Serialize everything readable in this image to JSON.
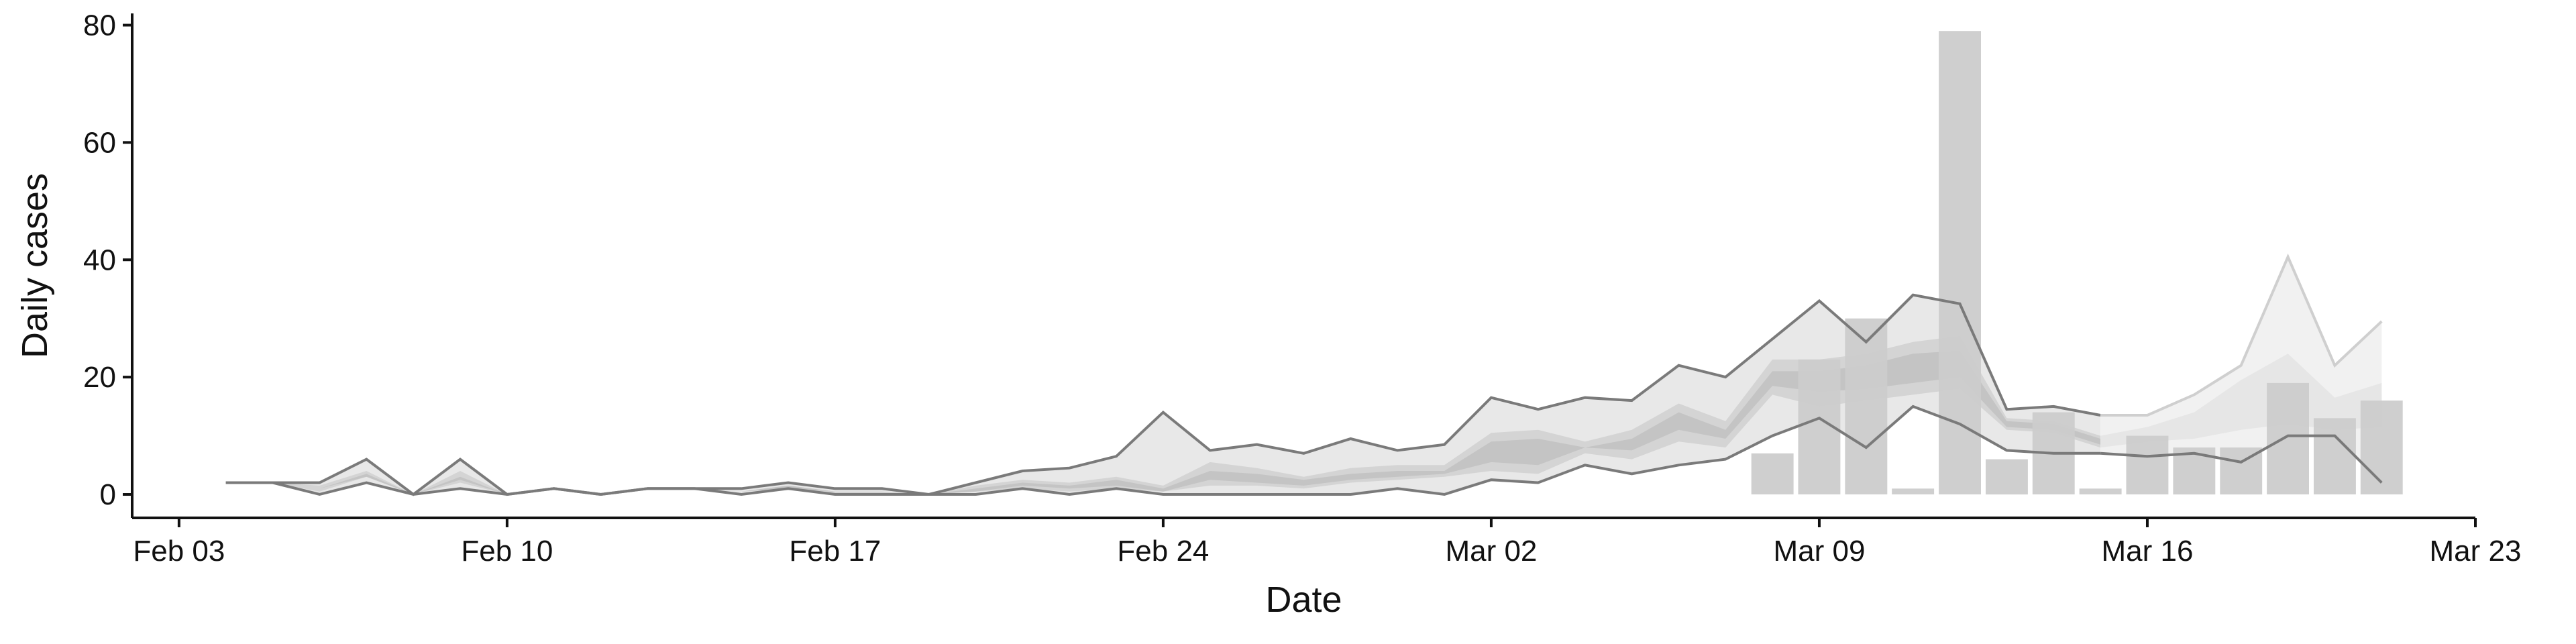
{
  "chart_data": {
    "type": "area",
    "xlabel": "Date",
    "ylabel": "Daily cases",
    "x_ticks": [
      "Feb 03",
      "Feb 10",
      "Feb 17",
      "Feb 24",
      "Mar 02",
      "Mar 09",
      "Mar 16",
      "Mar 23"
    ],
    "x_tick_dates": [
      "2020-02-03",
      "2020-02-10",
      "2020-02-17",
      "2020-02-24",
      "2020-03-02",
      "2020-03-09",
      "2020-03-16",
      "2020-03-23"
    ],
    "xlim": [
      "2020-02-02",
      "2020-03-23"
    ],
    "y_ticks": [
      0,
      20,
      40,
      60,
      80
    ],
    "ylim": [
      -4,
      82
    ],
    "grid": false,
    "legend": "none",
    "colors": {
      "axis": "#111111",
      "outer_band": "#e8e8e8",
      "mid_band": "#d4d4d4",
      "inner_band": "#c4c4c4",
      "forecast_outer_band": "#f1f1f1",
      "forecast_mid_band": "#e6e6e6",
      "bound_line": "#7a7a7a",
      "forecast_bound_line": "#cfcfcf",
      "bars": "#cccccc"
    },
    "bands": {
      "dates": [
        "2020-02-04",
        "2020-02-05",
        "2020-02-06",
        "2020-02-07",
        "2020-02-08",
        "2020-02-09",
        "2020-02-10",
        "2020-02-11",
        "2020-02-12",
        "2020-02-13",
        "2020-02-14",
        "2020-02-15",
        "2020-02-16",
        "2020-02-17",
        "2020-02-18",
        "2020-02-19",
        "2020-02-20",
        "2020-02-21",
        "2020-02-22",
        "2020-02-23",
        "2020-02-24",
        "2020-02-25",
        "2020-02-26",
        "2020-02-27",
        "2020-02-28",
        "2020-02-29",
        "2020-03-01",
        "2020-03-02",
        "2020-03-03",
        "2020-03-04",
        "2020-03-05",
        "2020-03-06",
        "2020-03-07",
        "2020-03-08",
        "2020-03-09",
        "2020-03-10",
        "2020-03-11",
        "2020-03-12",
        "2020-03-13",
        "2020-03-14",
        "2020-03-15",
        "2020-03-16",
        "2020-03-17",
        "2020-03-18",
        "2020-03-19",
        "2020-03-20",
        "2020-03-21"
      ],
      "upper_90": [
        2,
        2,
        2,
        6,
        0,
        6,
        0,
        1,
        0,
        1,
        1,
        1,
        2,
        1,
        1,
        0,
        2,
        4,
        4.5,
        6.5,
        14,
        7.5,
        8.5,
        7,
        9.5,
        7.5,
        8.5,
        16.5,
        14.5,
        16.5,
        16,
        22,
        20,
        26.5,
        33,
        26,
        34,
        32.5,
        14.5,
        15,
        13.5,
        13.5,
        17,
        22,
        40.5,
        22,
        29.5
      ],
      "lower_90": [
        2,
        2,
        0,
        2,
        0,
        1,
        0,
        1,
        0,
        1,
        1,
        0,
        1,
        0,
        0,
        0,
        0,
        1,
        0,
        1,
        0,
        0,
        0,
        0,
        0,
        1,
        0,
        2.5,
        2,
        5,
        3.5,
        5,
        6,
        10,
        13,
        8,
        15,
        12,
        7.5,
        7,
        7,
        6.5,
        7,
        5.5,
        10,
        10,
        2
      ],
      "upper_50": [
        2,
        2,
        1.5,
        4,
        0,
        4,
        0,
        1,
        0,
        1,
        1,
        0.5,
        1.5,
        0.5,
        0.5,
        0,
        1.5,
        2.5,
        2,
        3,
        1.5,
        5.5,
        4.5,
        3,
        4.5,
        5,
        5,
        10.5,
        11,
        9,
        11,
        15.5,
        12.5,
        23,
        23,
        24,
        26,
        27,
        13,
        12.5,
        10,
        11.5,
        14,
        19.5,
        24,
        16.5,
        19
      ],
      "lower_50": [
        2,
        2,
        0.5,
        3,
        0,
        2,
        0,
        1,
        0,
        1,
        1,
        0.5,
        1,
        0,
        0,
        0,
        0.5,
        1,
        0.5,
        1,
        0.5,
        1.5,
        1.5,
        1,
        2,
        2.5,
        3,
        4,
        3.5,
        7,
        6,
        9,
        8,
        17,
        15,
        16,
        17,
        18,
        11,
        10.5,
        8,
        9,
        9.5,
        11,
        12,
        11,
        11.5
      ],
      "upper_20": [
        2,
        2,
        1,
        3.5,
        0,
        3,
        0,
        1,
        0,
        1,
        1,
        0.5,
        1.5,
        0.5,
        0.5,
        0,
        1,
        2,
        1.5,
        2.5,
        1,
        4,
        3.5,
        2.5,
        3.5,
        4,
        4,
        9,
        9.5,
        8,
        9.5,
        14,
        11,
        21,
        21,
        22,
        24,
        24.5,
        12.5,
        12,
        9.5,
        11,
        12.5,
        17,
        20,
        15,
        17
      ],
      "lower_20": [
        2,
        2,
        1,
        3,
        0,
        2.5,
        0,
        1,
        0,
        1,
        1,
        0.5,
        1,
        0.5,
        0.5,
        0,
        0.5,
        1.5,
        1,
        1.5,
        0.5,
        2.5,
        2,
        1.5,
        2.5,
        3,
        3.5,
        5.5,
        5,
        8,
        7.5,
        11,
        9.5,
        18.5,
        17.5,
        18,
        19,
        20,
        11.5,
        11,
        8.5,
        10,
        10.5,
        12.5,
        14,
        12.5,
        13.5
      ]
    },
    "bars": {
      "dates": [
        "2020-03-08",
        "2020-03-09",
        "2020-03-10",
        "2020-03-11",
        "2020-03-12",
        "2020-03-13",
        "2020-03-14",
        "2020-03-15",
        "2020-03-16",
        "2020-03-17",
        "2020-03-18",
        "2020-03-19",
        "2020-03-20",
        "2020-03-21"
      ],
      "values": [
        7,
        23,
        30,
        1,
        79,
        6,
        14,
        1,
        10,
        8,
        8,
        19,
        13,
        16
      ]
    }
  }
}
